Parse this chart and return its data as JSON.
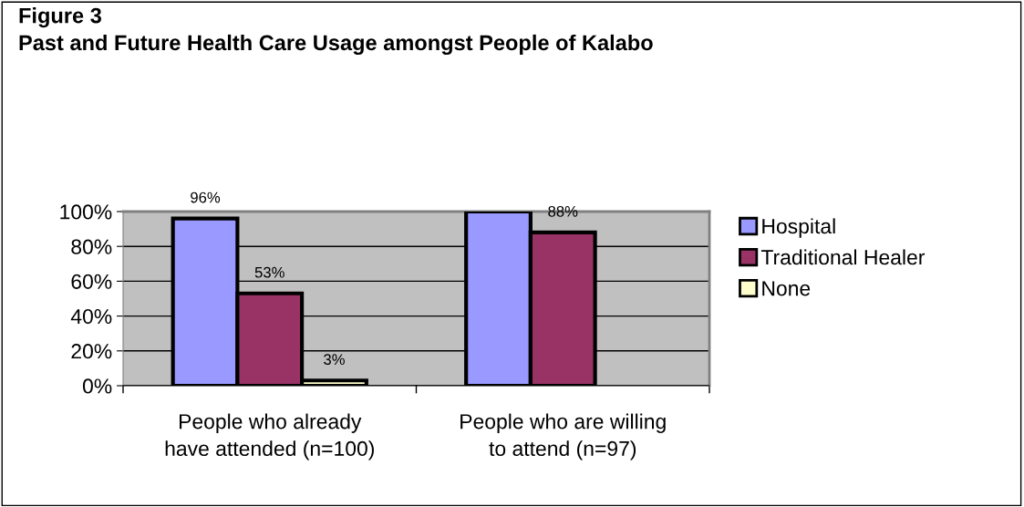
{
  "chart_data": {
    "type": "bar",
    "title": "Figure 3\nPast and Future Health Care Usage amongst People of Kalabo",
    "categories": [
      "People who already\nhave attended (n=100)",
      "People who are willing\nto attend (n=97)"
    ],
    "series": [
      {
        "name": "Hospital",
        "color": "#9999ff",
        "values": [
          96,
          100
        ],
        "value_labels": [
          "96%",
          null
        ]
      },
      {
        "name": "Traditional Healer",
        "color": "#993366",
        "values": [
          53,
          88
        ],
        "value_labels": [
          "53%",
          "88%"
        ]
      },
      {
        "name": "None",
        "color": "#ffffcc",
        "values": [
          3,
          null
        ],
        "value_labels": [
          "3%",
          null
        ]
      }
    ],
    "ylim": [
      0,
      100
    ],
    "yticks": [
      {
        "value": 0,
        "label": "0%"
      },
      {
        "value": 20,
        "label": "20%"
      },
      {
        "value": 40,
        "label": "40%"
      },
      {
        "value": 60,
        "label": "60%"
      },
      {
        "value": 80,
        "label": "80%"
      },
      {
        "value": 100,
        "label": "100%"
      }
    ],
    "grid": "y",
    "legend": "right"
  }
}
